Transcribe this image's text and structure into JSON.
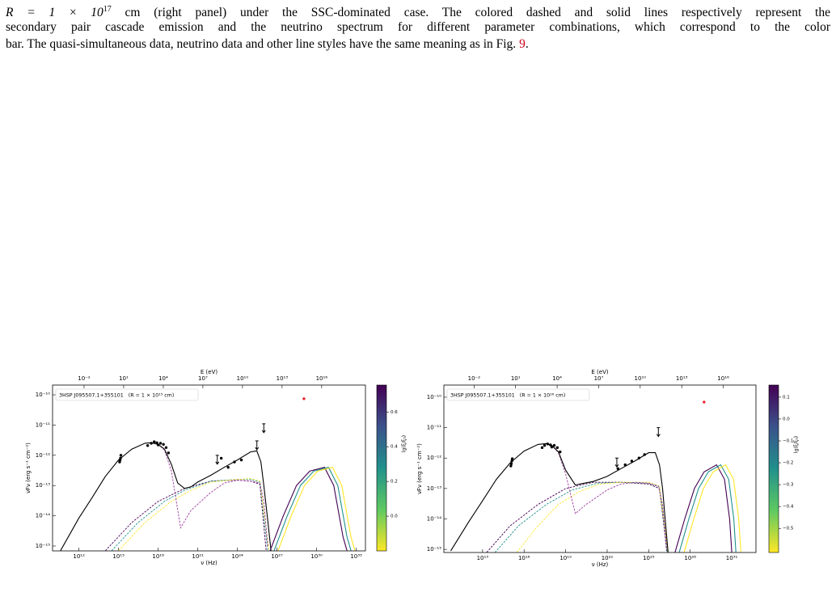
{
  "caption": {
    "math": "R = 1 × 10",
    "exponent": "17",
    "line1": " cm (right panel) under the SSC-dominated case. The colored dashed and solid lines respectively represent the",
    "line2": "secondary pair cascade emission and the neutrino spectrum for different parameter combinations, which correspond to the color",
    "line3": "bar. The quasi-simultaneous data, neutrino data and other line styles have the same meaning as in Fig. ",
    "figure_ref": "9",
    "line3_end": "."
  },
  "chart_data": [
    {
      "type": "line",
      "x_scale": "log",
      "y_scale": "log",
      "annotation": "3HSP J095507.1+355101   (R = 1 × 10¹⁵ cm)",
      "xlabel": "ν (Hz)",
      "ylabel": "νFν (erg s⁻¹ cm⁻²)",
      "x2label": "E (eV)",
      "xlim": [
        10000000000.0,
        5e+33
      ],
      "ylim": [
        6.9e-16,
        2.1e-10
      ],
      "x2lim": [
        4.1e-05,
        2.07e+19
      ],
      "xticks": [
        {
          "value": 1000000000000.0,
          "label": "10¹²"
        },
        {
          "value": 1000000000000000.0,
          "label": "10¹⁵"
        },
        {
          "value": 1e+18,
          "label": "10¹⁸"
        },
        {
          "value": 1e+21,
          "label": "10²¹"
        },
        {
          "value": 1e+24,
          "label": "10²⁴"
        },
        {
          "value": 1e+27,
          "label": "10²⁷"
        },
        {
          "value": 1e+30,
          "label": "10³⁰"
        },
        {
          "value": 1e+33,
          "label": "10³³"
        }
      ],
      "x2ticks": [
        {
          "value": 0.01,
          "label": "10⁻²"
        },
        {
          "value": 10,
          "label": "10¹"
        },
        {
          "value": 10000,
          "label": "10⁴"
        },
        {
          "value": 10000000.0,
          "label": "10⁷"
        },
        {
          "value": 10000000000.0,
          "label": "10¹⁰"
        },
        {
          "value": 10000000000000.0,
          "label": "10¹³"
        },
        {
          "value": 1e+16,
          "label": "10¹⁶"
        }
      ],
      "yticks": [
        {
          "value": 1e-10,
          "label": "10⁻¹⁰"
        },
        {
          "value": 1e-11,
          "label": "10⁻¹¹"
        },
        {
          "value": 1e-12,
          "label": "10⁻¹²"
        },
        {
          "value": 1e-13,
          "label": "10⁻¹³"
        },
        {
          "value": 1e-14,
          "label": "10⁻¹⁴"
        },
        {
          "value": 1e-15,
          "label": "10⁻¹⁵"
        }
      ],
      "series": [
        {
          "kind": "line",
          "dashed": true,
          "color": "#440154",
          "x": [
            100000000000000.0,
            1e+16,
            1e+18,
            1e+20,
            1e+22,
            1e+24,
            1e+25,
            5e+25,
            1.5e+26
          ],
          "values": [
            7e-16,
            6e-15,
            3e-14,
            8e-14,
            1.4e-13,
            1.5e-13,
            1.4e-13,
            1.1e-13,
            7e-16
          ]
        },
        {
          "kind": "line",
          "dashed": true,
          "color": "#21918c",
          "x": [
            300000000000000.0,
            3e+16,
            3e+18,
            1e+20,
            1e+22,
            1e+24,
            1e+25,
            5e+25,
            2e+26
          ],
          "values": [
            7e-16,
            6e-15,
            3e-14,
            7e-14,
            1.4e-13,
            1.6e-13,
            1.6e-13,
            1.3e-13,
            7e-16
          ]
        },
        {
          "kind": "line",
          "dashed": true,
          "color": "#fde725",
          "x": [
            1000000000000000.0,
            1e+17,
            1e+19,
            3e+20,
            1e+22,
            1e+24,
            1e+25,
            5e+25,
            2.5e+26
          ],
          "values": [
            7e-16,
            6e-15,
            3e-14,
            7e-14,
            1.3e-13,
            1.6e-13,
            1.7e-13,
            1.4e-13,
            7e-16
          ]
        },
        {
          "kind": "line",
          "dashed": true,
          "color": "#9a3a9a",
          "x": [
            1e+18,
            3e+18,
            1e+19,
            5e+19,
            3e+20,
            1e+22,
            1e+23,
            1e+24,
            1e+25,
            5e+25,
            1e+26,
            2e+26
          ],
          "values": [
            2.3e-12,
            1.5e-12,
            3e-13,
            4e-15,
            1.5e-14,
            6e-14,
            1.2e-13,
            1.5e-13,
            1.4e-13,
            1.2e-13,
            3e-14,
            1e-15
          ]
        },
        {
          "kind": "line",
          "dashed": false,
          "color": "#000000",
          "x": [
            40000000000.0,
            1000000000000.0,
            10000000000000.0,
            100000000000000.0,
            1000000000000000.0,
            1e+16,
            1e+17,
            3e+17,
            1e+18,
            3e+18,
            1e+19,
            3e+19,
            1e+20,
            3e+20,
            1e+21,
            1e+22,
            1e+23,
            1e+24,
            1e+25,
            3e+25,
            6e+25,
            1e+26,
            2e+26,
            3.5e+26
          ],
          "values": [
            7e-16,
            8.5e-15,
            4e-14,
            2e-13,
            7e-13,
            1.6e-12,
            2.5e-12,
            2.6e-12,
            2.3e-12,
            1.6e-12,
            5e-13,
            1.2e-13,
            8e-14,
            9e-14,
            1.3e-13,
            2.2e-13,
            4e-13,
            7e-13,
            1.3e-12,
            1.4e-12,
            6e-13,
            1e-13,
            7e-15,
            7e-16
          ]
        },
        {
          "kind": "line",
          "dashed": false,
          "color": "#440154",
          "x": [
            3e+26,
            3e+27,
            3e+28,
            3e+29,
            4e+30,
            2e+31,
            1e+32,
            2e+32
          ],
          "values": [
            7e-16,
            1e-14,
            1e-13,
            3e-13,
            4e-13,
            1e-13,
            2e-15,
            7e-16
          ]
        },
        {
          "kind": "line",
          "dashed": false,
          "color": "#21918c",
          "x": [
            6e+26,
            6e+27,
            6e+28,
            6e+29,
            8e+30,
            4e+31,
            2e+32,
            4e+32
          ],
          "values": [
            7e-16,
            1e-14,
            1e-13,
            3e-13,
            4e-13,
            1e-13,
            2e-15,
            7e-16
          ]
        },
        {
          "kind": "line",
          "dashed": false,
          "color": "#fde725",
          "x": [
            1.2e+27,
            1.2e+28,
            1.2e+29,
            1.2e+30,
            1.6e+31,
            8e+31,
            4e+32,
            8e+32
          ],
          "values": [
            7e-16,
            1e-14,
            1e-13,
            3e-13,
            4e-13,
            1e-13,
            2e-15,
            7e-16
          ]
        },
        {
          "kind": "points",
          "color": "#000000",
          "x": [
            1200000000000000.0,
            1300000000000000.0,
            1400000000000000.0,
            1500000000000000.0,
            1.6e+17,
            3e+17,
            5e+17,
            8e+17,
            1e+18,
            1.5e+18,
            2.5e+18,
            4e+18,
            6e+18,
            6e+22,
            2e+23,
            6e+23,
            2e+24
          ],
          "values": [
            6e-13,
            7e-13,
            8e-13,
            1e-12,
            2.1e-12,
            2.5e-12,
            2.8e-12,
            2.6e-12,
            2.2e-12,
            2.5e-12,
            2.3e-12,
            1.8e-12,
            1.2e-12,
            8e-13,
            4e-13,
            6e-13,
            7e-13
          ]
        },
        {
          "kind": "upper_limit",
          "color": "#000000",
          "x": [
            3e+22,
            3e+25,
            1e+26
          ],
          "values": [
            1e-12,
            3e-12,
            1.1e-11
          ]
        },
        {
          "kind": "points",
          "color": "#e8202a",
          "x": [
            1.1e+29
          ],
          "values": [
            7.4e-11
          ]
        }
      ],
      "colorbar": {
        "label": "lg(ξ/ξ₀)",
        "lim": [
          -0.2,
          0.755
        ],
        "colors": [
          "#440154",
          "#3b528b",
          "#21918c",
          "#5ec962",
          "#fde725"
        ],
        "ticks": [
          0.6,
          0.4,
          0.2,
          {
            "value": 0,
            "label": "0.0"
          }
        ]
      }
    },
    {
      "type": "line",
      "x_scale": "log",
      "y_scale": "log",
      "annotation": "3HSP J095507.1+355101   (R = 1 × 10¹⁶ cm)",
      "xlabel": "ν (Hz)",
      "ylabel": "νFν (erg s⁻¹ cm⁻²)",
      "x2label": "E (eV)",
      "xlim": [
        16000000000.0,
        5.6e+32
      ],
      "ylim": [
        7.9e-16,
        2.5e-10
      ],
      "x2lim": [
        6.6e-05,
        2.3e+18
      ],
      "xticks": [
        {
          "value": 10000000000000.0,
          "label": "10¹³"
        },
        {
          "value": 1e+16,
          "label": "10¹⁶"
        },
        {
          "value": 1e+19,
          "label": "10¹⁹"
        },
        {
          "value": 1e+22,
          "label": "10²²"
        },
        {
          "value": 1e+25,
          "label": "10²⁵"
        },
        {
          "value": 1e+28,
          "label": "10²⁸"
        },
        {
          "value": 1e+31,
          "label": "10³¹"
        }
      ],
      "x2ticks": [
        {
          "value": 0.01,
          "label": "10⁻²"
        },
        {
          "value": 10,
          "label": "10¹"
        },
        {
          "value": 10000,
          "label": "10⁴"
        },
        {
          "value": 10000000.0,
          "label": "10⁷"
        },
        {
          "value": 10000000000.0,
          "label": "10¹⁰"
        },
        {
          "value": 10000000000000.0,
          "label": "10¹³"
        },
        {
          "value": 1e+16,
          "label": "10¹⁶"
        }
      ],
      "yticks": [
        {
          "value": 1e-10,
          "label": "10⁻¹⁰"
        },
        {
          "value": 1e-11,
          "label": "10⁻¹¹"
        },
        {
          "value": 1e-12,
          "label": "10⁻¹²"
        },
        {
          "value": 1e-13,
          "label": "10⁻¹³"
        },
        {
          "value": 1e-14,
          "label": "10⁻¹⁴"
        },
        {
          "value": 1e-15,
          "label": "10⁻¹⁵"
        }
      ],
      "series": [
        {
          "kind": "line",
          "dashed": true,
          "color": "#440154",
          "x": [
            20000000000000.0,
            1000000000000000.0,
            1e+17,
            1e+19,
            1e+21,
            1e+23,
            1e+25,
            6e+25,
            1.5e+26,
            2e+26
          ],
          "values": [
            8e-16,
            6e-15,
            3e-14,
            1e-13,
            1.6e-13,
            1.6e-13,
            1.4e-13,
            1e-13,
            3e-15,
            8e-16
          ]
        },
        {
          "kind": "line",
          "dashed": true,
          "color": "#21918c",
          "x": [
            80000000000000.0,
            4000000000000000.0,
            4e+17,
            3e+19,
            2e+21,
            1e+23,
            1e+25,
            6e+25,
            1.6e+26,
            2.2e+26
          ],
          "values": [
            8e-16,
            6e-15,
            3e-14,
            9e-14,
            1.5e-13,
            1.6e-13,
            1.5e-13,
            1.1e-13,
            3e-15,
            8e-16
          ]
        },
        {
          "kind": "line",
          "dashed": true,
          "color": "#fde725",
          "x": [
            3000000000000000.0,
            1e+17,
            3e+18,
            1e+20,
            3e+21,
            1e+23,
            1e+25,
            6e+25,
            1.7e+26,
            2.4e+26
          ],
          "values": [
            8e-16,
            6e-15,
            3e-14,
            8e-14,
            1.4e-13,
            1.6e-13,
            1.6e-13,
            1.2e-13,
            3e-15,
            8e-16
          ]
        },
        {
          "kind": "line",
          "dashed": true,
          "color": "#9a3a9a",
          "x": [
            1e+18,
            3e+18,
            1e+19,
            5e+19,
            3e+20,
            1e+22,
            1e+23,
            1e+24,
            1e+25,
            5e+25,
            1e+26,
            2e+26
          ],
          "values": [
            2.6e-12,
            1.5e-12,
            3e-13,
            1.5e-14,
            3e-14,
            9e-14,
            1.4e-13,
            1.6e-13,
            1.5e-13,
            1.2e-13,
            3e-14,
            1e-15
          ]
        },
        {
          "kind": "line",
          "dashed": false,
          "color": "#000000",
          "x": [
            50000000000.0,
            1000000000000.0,
            10000000000000.0,
            100000000000000.0,
            1000000000000000.0,
            1e+16,
            1e+17,
            4e+17,
            1e+18,
            3e+18,
            1e+19,
            5e+19,
            1e+20,
            1e+21,
            1e+22,
            1e+23,
            1e+24,
            1e+25,
            3e+25,
            6e+25,
            1e+26,
            1.6e+26,
            2.5e+26
          ],
          "values": [
            9e-16,
            8e-15,
            4e-14,
            2e-13,
            7e-13,
            1.7e-12,
            2.8e-12,
            3e-12,
            2.6e-12,
            1.6e-12,
            4e-13,
            1.3e-13,
            1.4e-13,
            1.7e-13,
            2.5e-13,
            4.5e-13,
            8e-13,
            1.5e-12,
            1.5e-12,
            6e-13,
            1e-13,
            8e-15,
            8e-16
          ]
        },
        {
          "kind": "line",
          "dashed": false,
          "color": "#440154",
          "x": [
            8e+26,
            4e+27,
            2e+28,
            1e+29,
            8e+29,
            3e+30,
            7e+30,
            1e+31
          ],
          "values": [
            8e-16,
            1e-14,
            1e-13,
            3.5e-13,
            6e-13,
            2e-13,
            1e-14,
            8e-16
          ]
        },
        {
          "kind": "line",
          "dashed": false,
          "color": "#21918c",
          "x": [
            1.6e+27,
            8e+27,
            4e+28,
            2e+29,
            1.6e+30,
            6e+30,
            1.4e+31,
            2e+31
          ],
          "values": [
            8e-16,
            1e-14,
            1e-13,
            3.5e-13,
            6e-13,
            2e-13,
            1e-14,
            8e-16
          ]
        },
        {
          "kind": "line",
          "dashed": false,
          "color": "#fde725",
          "x": [
            3.6e+27,
            1.8e+28,
            9e+28,
            4.5e+29,
            3.6e+30,
            1.35e+31,
            3.2e+31,
            4.5e+31
          ],
          "values": [
            8e-16,
            1e-14,
            1e-13,
            3.5e-13,
            6e-13,
            2e-13,
            1e-14,
            8e-16
          ]
        },
        {
          "kind": "points",
          "color": "#000000",
          "x": [
            1100000000000000.0,
            1200000000000000.0,
            1300000000000000.0,
            1400000000000000.0,
            2e+17,
            3e+17,
            5e+17,
            8e+17,
            1e+18,
            1.5e+18,
            2.5e+18,
            4e+18,
            6e+22,
            2e+23,
            6e+23,
            2e+24,
            5e+24
          ],
          "values": [
            5.5e-13,
            6.5e-13,
            8e-13,
            9.5e-13,
            2.2e-12,
            2.6e-12,
            2.9e-12,
            2.7e-12,
            2.3e-12,
            2.6e-12,
            2.2e-12,
            1.6e-12,
            4.5e-13,
            6e-13,
            8e-13,
            1e-12,
            1.3e-12
          ]
        },
        {
          "kind": "upper_limit",
          "color": "#000000",
          "x": [
            5e+22,
            5e+25
          ],
          "values": [
            1e-12,
            1e-11
          ]
        },
        {
          "kind": "points",
          "color": "#e8202a",
          "x": [
            1e+29
          ],
          "values": [
            6.9e-11
          ]
        }
      ],
      "colorbar": {
        "label": "lg(ξ/ξ₀)",
        "lim": [
          -0.61,
          0.155
        ],
        "colors": [
          "#440154",
          "#3b528b",
          "#21918c",
          "#5ec962",
          "#fde725"
        ],
        "ticks": [
          0.1,
          {
            "value": 0,
            "label": "0.0"
          },
          {
            "value": -0.1,
            "label": "−0.1"
          },
          {
            "value": -0.2,
            "label": "−0.2"
          },
          {
            "value": -0.3,
            "label": "−0.3"
          },
          {
            "value": -0.4,
            "label": "−0.4"
          },
          {
            "value": -0.5,
            "label": "−0.5"
          }
        ]
      }
    }
  ]
}
